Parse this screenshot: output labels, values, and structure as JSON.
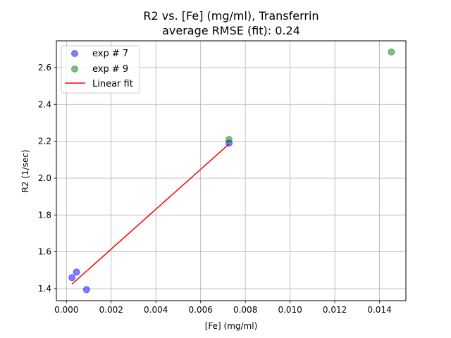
{
  "chart_data": {
    "type": "scatter",
    "title": [
      "R2 vs. [Fe] (mg/ml), Transferrin",
      "average RMSE (fit): 0.24"
    ],
    "xlabel": "[Fe] (mg/ml)",
    "ylabel": "R2 (1/sec)",
    "xlim": [
      -0.00045,
      0.01518
    ],
    "ylim": [
      1.335,
      2.745
    ],
    "x_ticks": [
      0.0,
      0.002,
      0.004,
      0.006,
      0.008,
      0.01,
      0.012,
      0.014
    ],
    "x_tick_labels": [
      "0.000",
      "0.002",
      "0.004",
      "0.006",
      "0.008",
      "0.010",
      "0.012",
      "0.014"
    ],
    "y_ticks": [
      1.4,
      1.6,
      1.8,
      2.0,
      2.2,
      2.4,
      2.6
    ],
    "y_tick_labels": [
      "1.4",
      "1.6",
      "1.8",
      "2.0",
      "2.2",
      "2.4",
      "2.6"
    ],
    "grid": true,
    "legend_position": "top-left",
    "series": [
      {
        "name": "exp # 7",
        "kind": "scatter",
        "color": "#0000ff",
        "points": [
          {
            "x": 0.00025,
            "y": 1.46
          },
          {
            "x": 0.00045,
            "y": 1.49
          },
          {
            "x": 0.0009,
            "y": 1.395
          },
          {
            "x": 0.00727,
            "y": 2.19
          }
        ]
      },
      {
        "name": "exp # 9",
        "kind": "scatter",
        "color": "#008000",
        "points": [
          {
            "x": 0.00727,
            "y": 2.21
          },
          {
            "x": 0.01453,
            "y": 2.685
          }
        ]
      },
      {
        "name": "Linear fit",
        "kind": "line",
        "color": "#ff0000",
        "points": [
          {
            "x": 0.00025,
            "y": 1.425
          },
          {
            "x": 0.00727,
            "y": 2.185
          }
        ]
      }
    ]
  }
}
